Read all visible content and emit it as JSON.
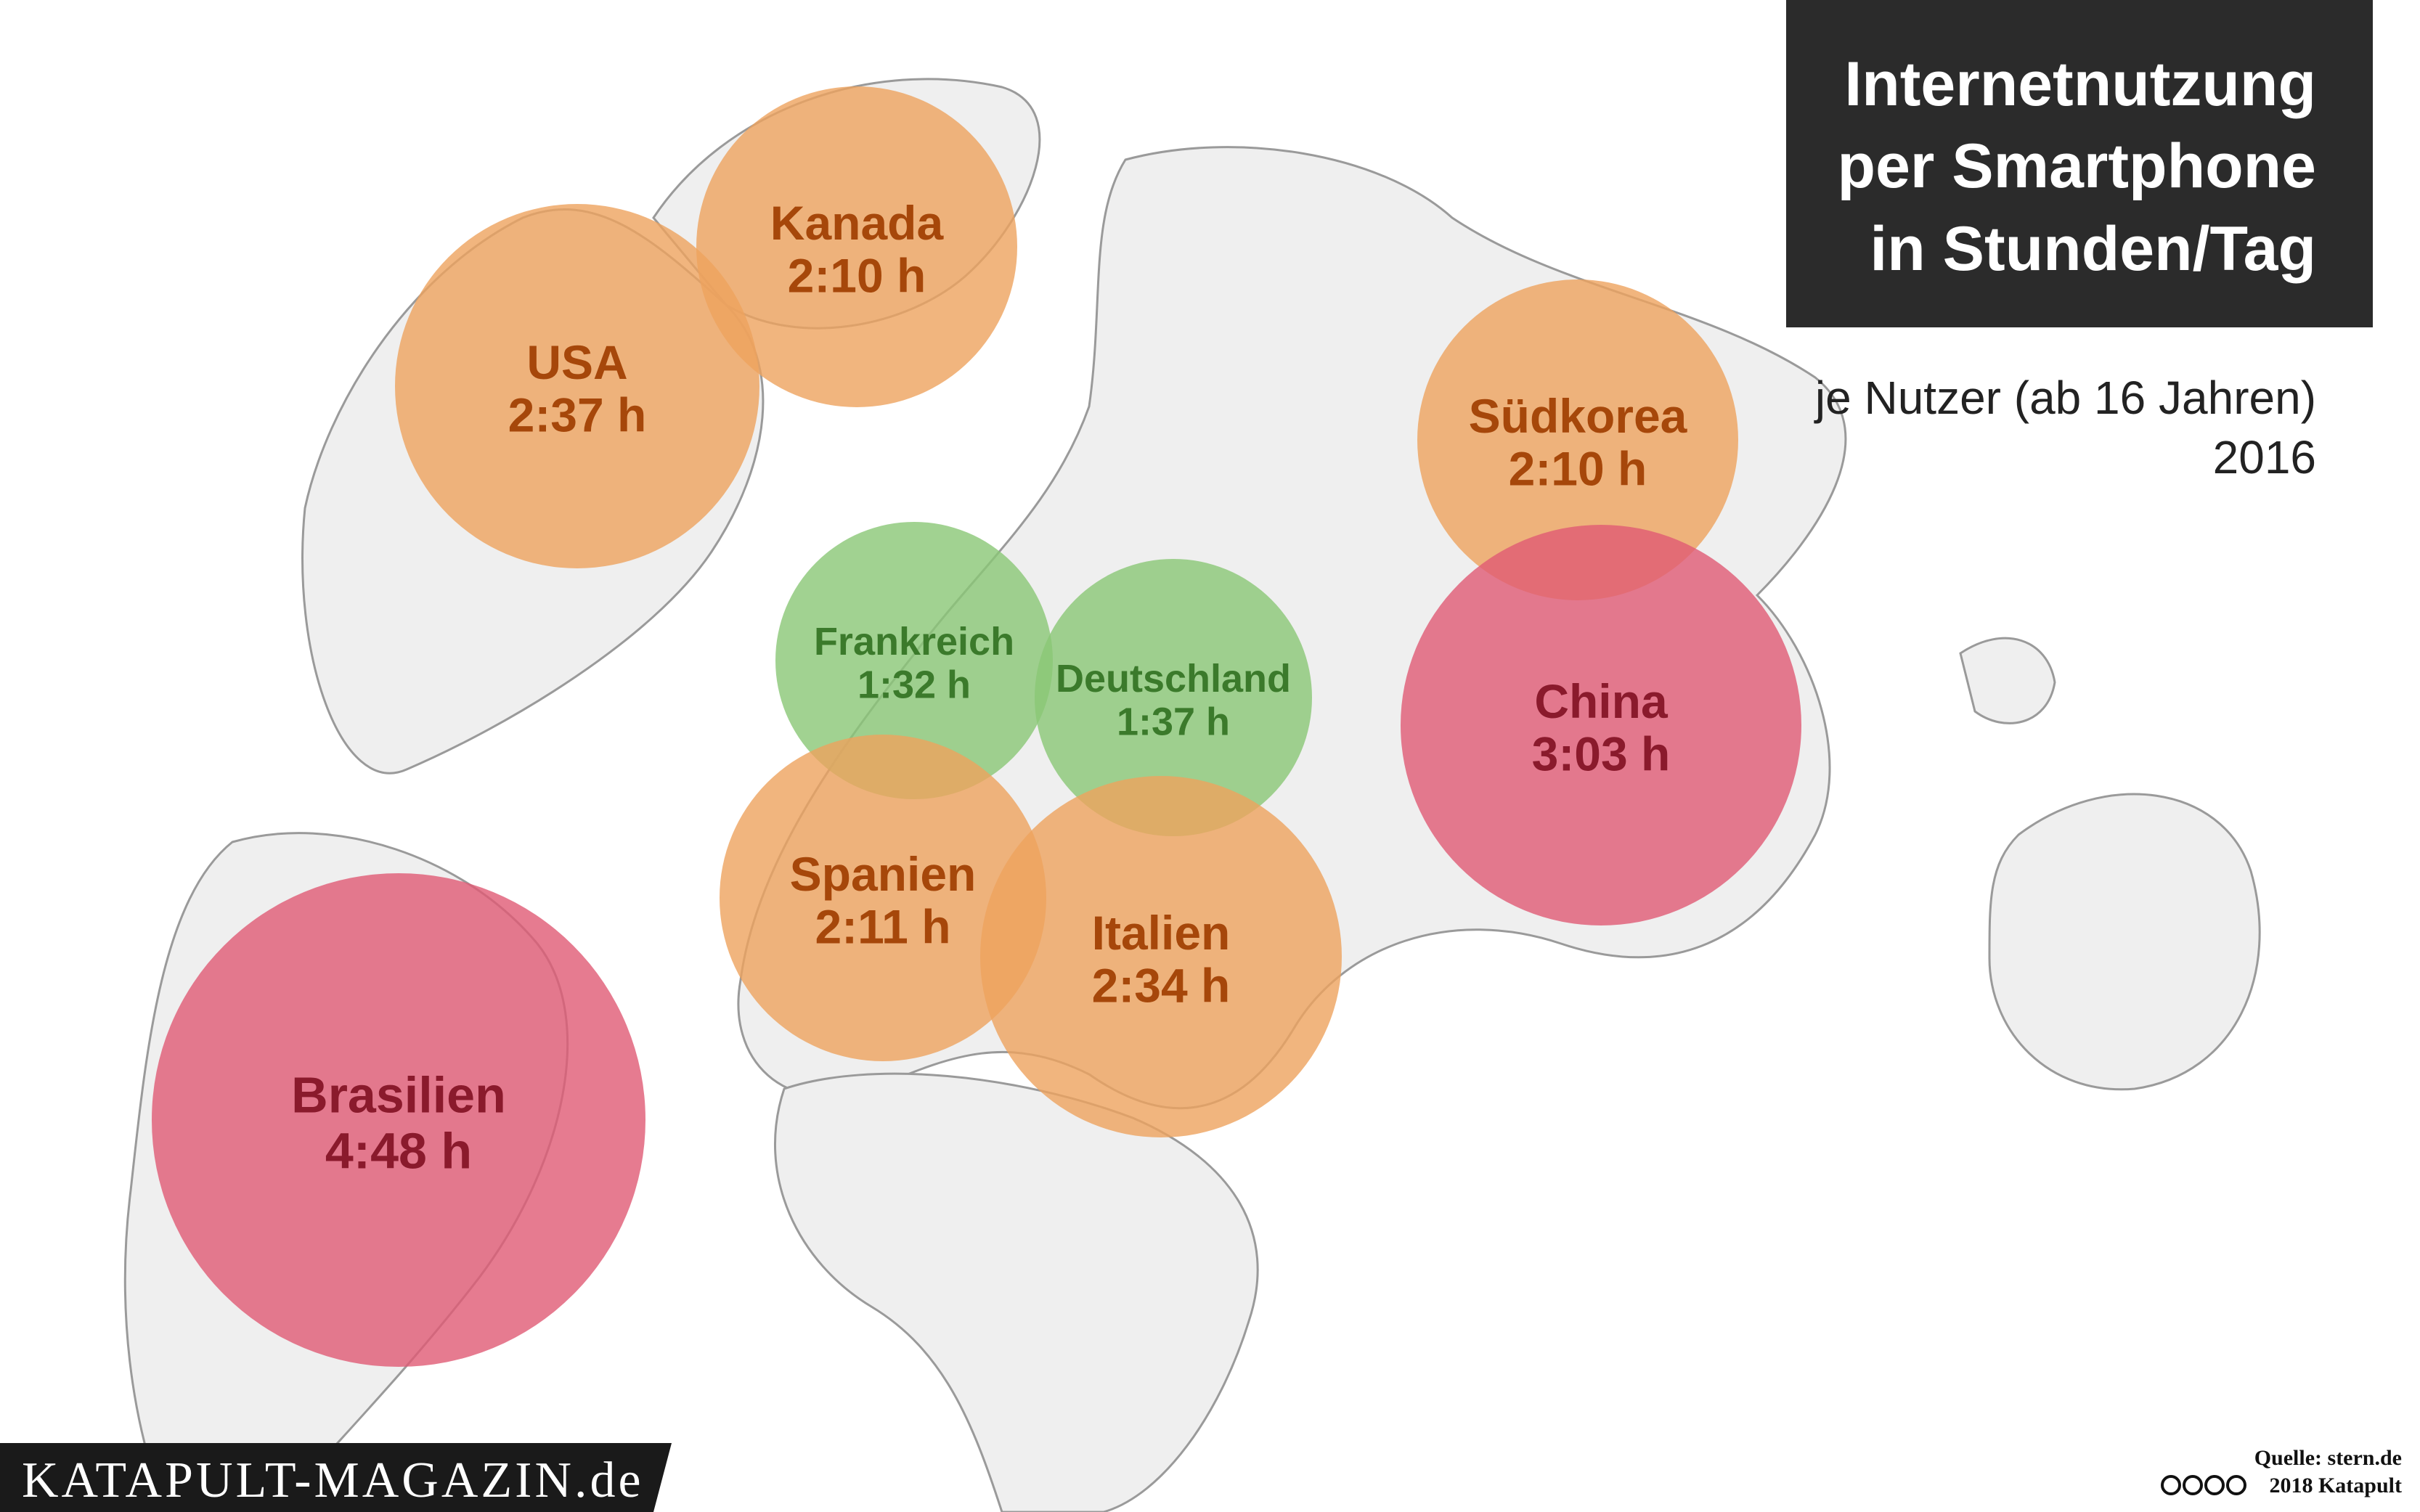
{
  "title_lines": [
    "Internetnutzung",
    "per Smartphone",
    "in Stunden/Tag"
  ],
  "subtitle": "je Nutzer (ab 16 Jahren)",
  "year": "2016",
  "bubbles": [
    {
      "name": "USA",
      "time": "2:37 h"
    },
    {
      "name": "Kanada",
      "time": "2:10 h"
    },
    {
      "name": "Südkorea",
      "time": "2:10 h"
    },
    {
      "name": "China",
      "time": "3:03 h"
    },
    {
      "name": "Frankreich",
      "time": "1:32 h"
    },
    {
      "name": "Deutschland",
      "time": "1:37 h"
    },
    {
      "name": "Spanien",
      "time": "2:11 h"
    },
    {
      "name": "Italien",
      "time": "2:34 h"
    },
    {
      "name": "Brasilien",
      "time": "4:48 h"
    }
  ],
  "brand": "KATAPULT-MAGAZIN.de",
  "source": "Quelle: stern.de",
  "copyright": "2018 Katapult"
}
